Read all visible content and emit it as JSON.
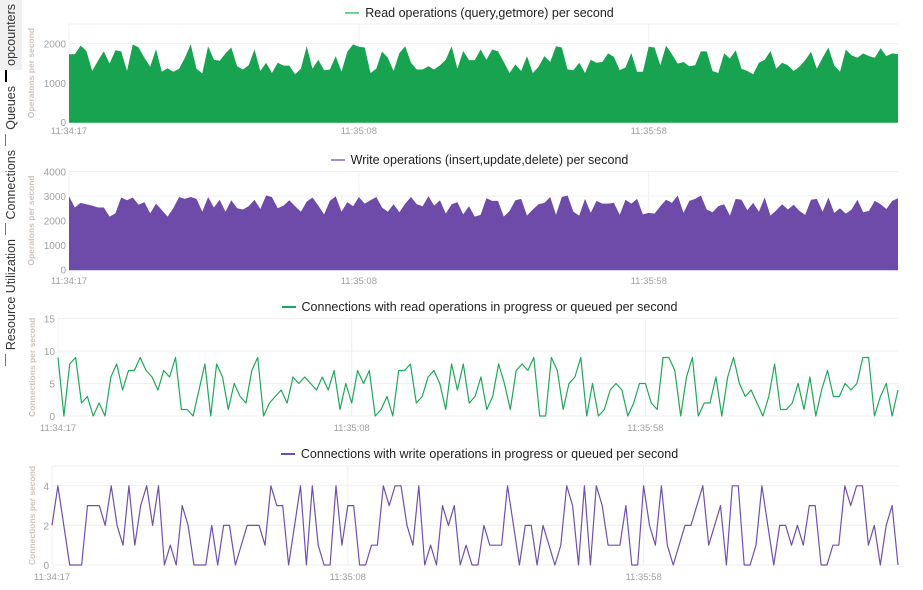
{
  "tabs": [
    {
      "label": "opcounters",
      "active": true
    },
    {
      "label": "Queues",
      "active": false
    },
    {
      "label": "Connections",
      "active": false
    },
    {
      "label": "Resource Utilization",
      "active": false
    }
  ],
  "chart_data": [
    {
      "type": "area",
      "title": "Read operations (query,getmore) per second",
      "ylabel": "Operatons per second",
      "color": "#17a34f",
      "ylim": [
        0,
        2500
      ],
      "yticks": [
        0,
        1000,
        2000
      ],
      "x_tick_labels": [
        "11:34:17",
        "11:35:08",
        "11:35:58"
      ],
      "grid": true,
      "legend": "top-center",
      "values": [
        1730,
        1730,
        1950,
        1810,
        1300,
        1560,
        1800,
        1490,
        1830,
        1800,
        1300,
        1980,
        1900,
        1640,
        1410,
        1860,
        1280,
        1370,
        1280,
        1360,
        1640,
        1980,
        1360,
        1240,
        1930,
        1590,
        1560,
        1750,
        1900,
        1420,
        1340,
        1450,
        1850,
        1300,
        1510,
        1250,
        1510,
        1440,
        1440,
        1220,
        1360,
        1930,
        1360,
        1590,
        1320,
        1340,
        1680,
        1280,
        1790,
        1980,
        1920,
        1900,
        1250,
        1360,
        1800,
        1640,
        1300,
        1760,
        1930,
        1510,
        1340,
        1340,
        1420,
        1340,
        1450,
        1590,
        1930,
        1360,
        1810,
        1580,
        1580,
        1850,
        1590,
        1850,
        1800,
        1530,
        1250,
        1470,
        1300,
        1680,
        1250,
        1410,
        1680,
        1530,
        1930,
        1900,
        1340,
        1320,
        1510,
        1250,
        1590,
        1510,
        1530,
        1750,
        1660,
        1320,
        1390,
        1760,
        1280,
        1280,
        1920,
        1900,
        1450,
        1950,
        1730,
        1490,
        1530,
        1420,
        1450,
        1800,
        1800,
        1300,
        1250,
        1750,
        1620,
        1830,
        1360,
        1300,
        1220,
        1510,
        1590,
        1810,
        1360,
        1510,
        1450,
        1300,
        1410,
        1580,
        1790,
        1360,
        1640,
        1900,
        1450,
        1280,
        1850,
        1700,
        1640,
        1750,
        1680,
        1640,
        1880,
        1680,
        1750,
        1730
      ]
    },
    {
      "type": "area",
      "title": "Write operations (insert,update,delete) per second",
      "ylabel": "Operatons per second",
      "color": "#6e4ba8",
      "ylim": [
        0,
        4000
      ],
      "yticks": [
        0,
        1000,
        2000,
        3000,
        4000
      ],
      "x_tick_labels": [
        "11:34:17",
        "11:35:08",
        "11:35:58"
      ],
      "grid": true,
      "legend": "top-center",
      "values": [
        2990,
        2530,
        2720,
        2660,
        2610,
        2530,
        2530,
        2160,
        2290,
        2940,
        2830,
        2940,
        2640,
        2750,
        2290,
        2690,
        2430,
        2160,
        2500,
        2960,
        2880,
        2960,
        2880,
        2360,
        2960,
        2530,
        2850,
        2360,
        2830,
        2500,
        2450,
        2580,
        2850,
        2470,
        3020,
        2960,
        2500,
        2610,
        2830,
        2580,
        2360,
        2770,
        2940,
        2610,
        2250,
        2800,
        2990,
        2360,
        2750,
        2580,
        2960,
        2690,
        2830,
        2960,
        2530,
        2360,
        2660,
        2340,
        2690,
        2960,
        2660,
        2580,
        2990,
        2610,
        2830,
        2280,
        2660,
        2750,
        2250,
        2580,
        2160,
        2230,
        2910,
        2800,
        2800,
        2160,
        2390,
        2830,
        2880,
        2200,
        2450,
        2660,
        2720,
        2960,
        2230,
        2960,
        3020,
        2360,
        2200,
        2880,
        2310,
        2800,
        2690,
        2690,
        2720,
        2230,
        2850,
        2690,
        2880,
        2250,
        2310,
        2280,
        2580,
        2850,
        2720,
        3020,
        2310,
        2800,
        2880,
        3020,
        2450,
        2340,
        2580,
        2660,
        2200,
        2880,
        2850,
        2420,
        2720,
        2360,
        2940,
        2200,
        2420,
        2660,
        2450,
        2640,
        2390,
        2230,
        2850,
        2880,
        2360,
        2940,
        2310,
        2500,
        2280,
        2450,
        2850,
        2340,
        2390,
        2800,
        2660,
        2470,
        2800,
        2910
      ]
    },
    {
      "type": "line",
      "title": "Connections with read operations in progress or queued per second",
      "ylabel": "Connections per second",
      "color": "#1fa85a",
      "ylim": [
        0,
        15
      ],
      "yticks": [
        0,
        5,
        10,
        15
      ],
      "x_tick_labels": [
        "11:34:17",
        "11:35:08",
        "11:35:58"
      ],
      "grid": true,
      "legend": "top-center",
      "values": [
        9,
        0,
        8,
        9,
        2,
        3,
        0,
        2,
        0,
        6,
        8,
        4,
        7,
        7,
        9,
        7,
        6,
        4,
        7,
        6,
        9,
        1,
        1,
        0,
        4,
        8,
        0,
        8,
        6,
        1,
        5,
        3,
        2,
        7,
        9,
        0,
        2,
        3,
        4,
        2,
        6,
        5,
        6,
        5,
        4,
        6,
        4,
        7,
        1,
        5,
        2,
        7,
        5,
        7,
        0,
        1,
        3,
        0,
        7,
        7,
        8,
        2,
        3,
        6,
        7,
        5,
        1,
        8,
        4,
        8,
        2,
        3,
        6,
        1,
        3,
        8,
        5,
        1,
        7,
        8,
        7,
        9,
        0,
        0,
        9,
        7,
        1,
        5,
        6,
        9,
        0,
        5,
        0,
        1,
        4,
        5,
        4,
        0,
        2,
        5,
        5,
        2,
        1,
        9,
        9,
        7,
        0,
        6,
        9,
        0,
        2,
        2,
        6,
        0,
        6,
        9,
        5,
        3,
        4,
        2,
        0,
        3,
        8,
        1,
        1,
        2,
        5,
        1,
        6,
        0,
        4,
        7,
        3,
        3,
        5,
        4,
        5,
        9,
        9,
        0,
        3,
        5,
        0,
        4
      ]
    },
    {
      "type": "line",
      "title": "Connections with write operations in progress or queued per second",
      "ylabel": "Connections per second",
      "color": "#7050b0",
      "ylim": [
        0,
        5
      ],
      "yticks": [
        0,
        2,
        4
      ],
      "x_tick_labels": [
        "11:34:17",
        "11:35:08",
        "11:35:58"
      ],
      "grid": true,
      "legend": "top-center",
      "values": [
        2,
        4,
        2,
        0,
        0,
        0,
        3,
        3,
        3,
        2,
        4,
        2,
        1,
        4,
        1,
        3,
        4,
        2,
        4,
        0,
        1,
        0,
        3,
        2,
        0,
        0,
        0,
        2,
        0,
        2,
        2,
        0,
        1,
        2,
        2,
        2,
        1,
        4,
        3,
        3,
        0,
        2,
        4,
        0,
        4,
        1,
        0,
        0,
        4,
        1,
        3,
        3,
        0,
        0,
        1,
        1,
        4,
        3,
        4,
        4,
        2,
        1,
        4,
        0,
        1,
        0,
        3,
        2,
        3,
        0,
        1,
        0,
        0,
        2,
        1,
        1,
        1,
        4,
        2,
        0,
        2,
        2,
        0,
        2,
        1,
        0,
        1,
        4,
        3,
        0,
        4,
        0,
        4,
        3,
        1,
        1,
        1,
        3,
        0,
        0,
        4,
        2,
        1,
        4,
        1,
        0,
        1,
        2,
        2,
        3,
        4,
        1,
        2,
        3,
        0,
        4,
        4,
        0,
        0,
        1,
        4,
        2,
        0,
        2,
        2,
        1,
        2,
        1,
        3,
        3,
        0,
        0,
        1,
        1,
        4,
        3,
        4,
        4,
        1,
        2,
        0,
        2,
        3,
        0
      ]
    }
  ]
}
